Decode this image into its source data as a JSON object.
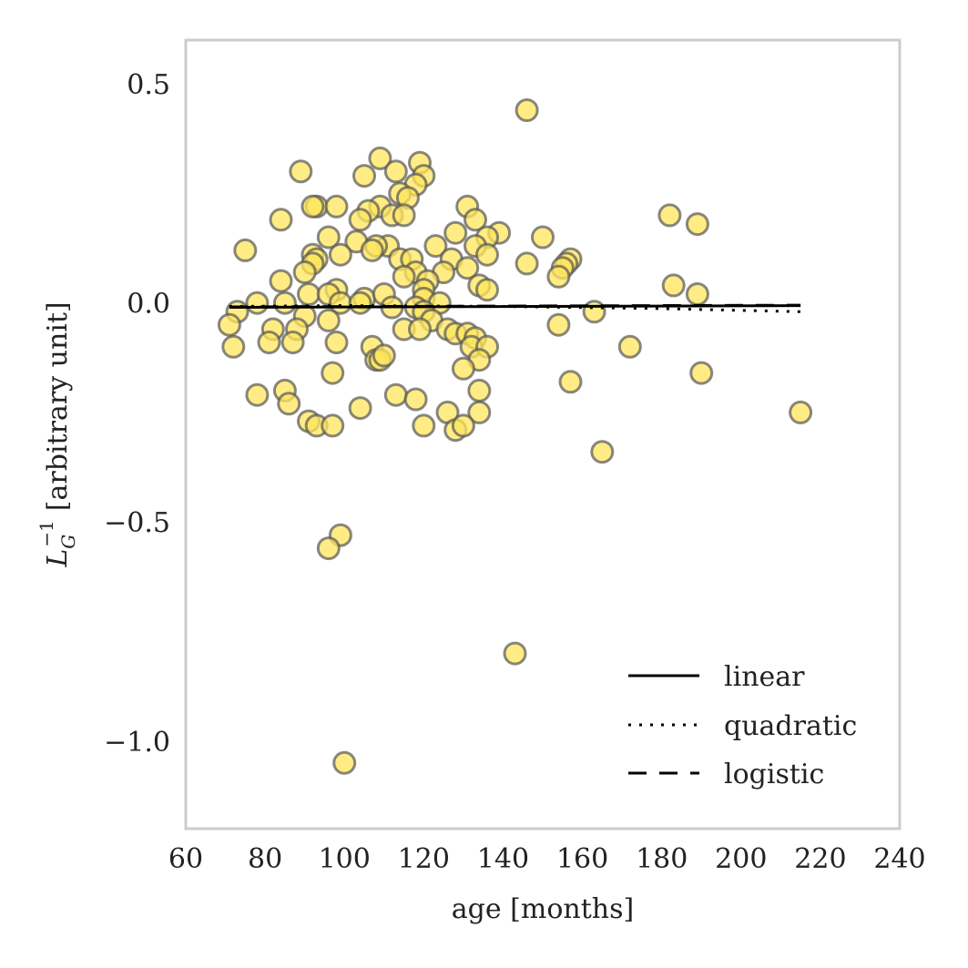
{
  "chart_data": {
    "type": "scatter",
    "xlabel": "age [months]",
    "ylabel": "[arbitrary unit]",
    "ylabel_symbol": {
      "base": "L",
      "sub": "G",
      "sup": "−1"
    },
    "xlim": [
      60,
      240
    ],
    "ylim": [
      -1.2,
      0.6
    ],
    "xticks": [
      60,
      80,
      100,
      120,
      140,
      160,
      180,
      200,
      220,
      240
    ],
    "xtick_labels": [
      "60",
      "80",
      "100",
      "120",
      "140",
      "160",
      "180",
      "200",
      "220",
      "240"
    ],
    "yticks": [
      0.5,
      0.0,
      -0.5,
      -1.0
    ],
    "ytick_labels": [
      "0.5",
      "0.0",
      "−0.5",
      "−1.0"
    ],
    "grid": false,
    "legend_position": "bottom-right",
    "point_color": "#ffe65c",
    "point_edge_color": "#555555",
    "line_color": "#000000",
    "points": [
      [
        146,
        0.44
      ],
      [
        109,
        0.33
      ],
      [
        119,
        0.32
      ],
      [
        89,
        0.3
      ],
      [
        113,
        0.3
      ],
      [
        120,
        0.29
      ],
      [
        105,
        0.29
      ],
      [
        118,
        0.27
      ],
      [
        114,
        0.25
      ],
      [
        116,
        0.24
      ],
      [
        93,
        0.22
      ],
      [
        92,
        0.22
      ],
      [
        98,
        0.22
      ],
      [
        131,
        0.22
      ],
      [
        109,
        0.22
      ],
      [
        106,
        0.21
      ],
      [
        112,
        0.2
      ],
      [
        115,
        0.2
      ],
      [
        104,
        0.19
      ],
      [
        84,
        0.19
      ],
      [
        133,
        0.19
      ],
      [
        182,
        0.2
      ],
      [
        189,
        0.18
      ],
      [
        128,
        0.16
      ],
      [
        139,
        0.16
      ],
      [
        96,
        0.15
      ],
      [
        136,
        0.15
      ],
      [
        150,
        0.15
      ],
      [
        103,
        0.14
      ],
      [
        111,
        0.13
      ],
      [
        108,
        0.13
      ],
      [
        123,
        0.13
      ],
      [
        133,
        0.13
      ],
      [
        75,
        0.12
      ],
      [
        107,
        0.12
      ],
      [
        99,
        0.11
      ],
      [
        92,
        0.11
      ],
      [
        93,
        0.1
      ],
      [
        114,
        0.1
      ],
      [
        117,
        0.1
      ],
      [
        127,
        0.1
      ],
      [
        136,
        0.11
      ],
      [
        146,
        0.09
      ],
      [
        157,
        0.1
      ],
      [
        156,
        0.09
      ],
      [
        155,
        0.08
      ],
      [
        92,
        0.09
      ],
      [
        90,
        0.07
      ],
      [
        118,
        0.07
      ],
      [
        125,
        0.07
      ],
      [
        131,
        0.08
      ],
      [
        154,
        0.06
      ],
      [
        84,
        0.05
      ],
      [
        121,
        0.05
      ],
      [
        115,
        0.06
      ],
      [
        120,
        0.03
      ],
      [
        134,
        0.04
      ],
      [
        136,
        0.03
      ],
      [
        183,
        0.04
      ],
      [
        189,
        0.02
      ],
      [
        98,
        0.03
      ],
      [
        105,
        0.01
      ],
      [
        91,
        0.02
      ],
      [
        96,
        0.02
      ],
      [
        110,
        0.02
      ],
      [
        120,
        0.01
      ],
      [
        85,
        0.0
      ],
      [
        78,
        0.0
      ],
      [
        99,
        0.0
      ],
      [
        104,
        0.0
      ],
      [
        112,
        -0.01
      ],
      [
        118,
        -0.01
      ],
      [
        124,
        0.0
      ],
      [
        73,
        -0.02
      ],
      [
        120,
        -0.02
      ],
      [
        163,
        -0.02
      ],
      [
        90,
        -0.03
      ],
      [
        96,
        -0.04
      ],
      [
        122,
        -0.04
      ],
      [
        71,
        -0.05
      ],
      [
        82,
        -0.06
      ],
      [
        88,
        -0.06
      ],
      [
        115,
        -0.06
      ],
      [
        119,
        -0.06
      ],
      [
        126,
        -0.06
      ],
      [
        128,
        -0.07
      ],
      [
        131,
        -0.07
      ],
      [
        133,
        -0.08
      ],
      [
        154,
        -0.05
      ],
      [
        81,
        -0.09
      ],
      [
        87,
        -0.09
      ],
      [
        98,
        -0.09
      ],
      [
        107,
        -0.1
      ],
      [
        132,
        -0.1
      ],
      [
        136,
        -0.1
      ],
      [
        172,
        -0.1
      ],
      [
        72,
        -0.1
      ],
      [
        108,
        -0.13
      ],
      [
        109,
        -0.13
      ],
      [
        110,
        -0.12
      ],
      [
        134,
        -0.13
      ],
      [
        130,
        -0.15
      ],
      [
        97,
        -0.16
      ],
      [
        190,
        -0.16
      ],
      [
        157,
        -0.18
      ],
      [
        78,
        -0.21
      ],
      [
        85,
        -0.2
      ],
      [
        113,
        -0.21
      ],
      [
        134,
        -0.2
      ],
      [
        118,
        -0.22
      ],
      [
        86,
        -0.23
      ],
      [
        104,
        -0.24
      ],
      [
        126,
        -0.25
      ],
      [
        134,
        -0.25
      ],
      [
        215,
        -0.25
      ],
      [
        91,
        -0.27
      ],
      [
        93,
        -0.28
      ],
      [
        97,
        -0.28
      ],
      [
        120,
        -0.28
      ],
      [
        128,
        -0.29
      ],
      [
        130,
        -0.28
      ],
      [
        165,
        -0.34
      ],
      [
        99,
        -0.53
      ],
      [
        96,
        -0.56
      ],
      [
        143,
        -0.8
      ],
      [
        100,
        -1.05
      ]
    ],
    "series": [
      {
        "name": "linear",
        "style": "solid",
        "x": [
          71,
          215
        ],
        "y": [
          -0.01,
          -0.006
        ]
      },
      {
        "name": "quadratic",
        "style": "dotted",
        "x": [
          71,
          100,
          140,
          180,
          215
        ],
        "y": [
          -0.008,
          -0.006,
          -0.008,
          -0.013,
          -0.02
        ]
      },
      {
        "name": "logistic",
        "style": "dashed",
        "x": [
          71,
          215
        ],
        "y": [
          -0.009,
          -0.005
        ]
      }
    ]
  }
}
